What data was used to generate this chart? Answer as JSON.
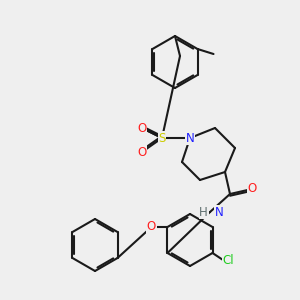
{
  "bg_color": "#efefef",
  "bond_color": "#1a1a1a",
  "bond_width": 1.5,
  "atom_colors": {
    "N": "#2020ff",
    "O": "#ff2020",
    "S": "#cccc00",
    "Cl": "#20cc20",
    "H": "#607070",
    "C": "#1a1a1a"
  },
  "font_size": 8.5
}
